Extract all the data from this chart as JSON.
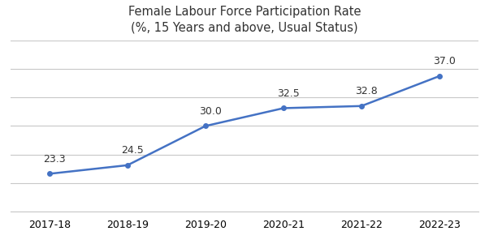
{
  "title_line1": "Female Labour Force Participation Rate",
  "title_line2": "(%, 15 Years and above, Usual Status)",
  "categories": [
    "2017-18",
    "2018-19",
    "2019-20",
    "2020-21",
    "2021-22",
    "2022-23"
  ],
  "values": [
    23.3,
    24.5,
    30.0,
    32.5,
    32.8,
    37.0
  ],
  "line_color": "#4472C4",
  "marker": "o",
  "marker_size": 4,
  "line_width": 1.8,
  "background_color": "#FFFFFF",
  "ylim": [
    18,
    42
  ],
  "yticks": [
    18,
    22,
    26,
    30,
    34,
    38,
    42
  ],
  "grid_color": "#C8C8C8",
  "title_fontsize": 10.5,
  "tick_fontsize": 9,
  "annotation_fontsize": 9,
  "annotation_color": "#333333"
}
